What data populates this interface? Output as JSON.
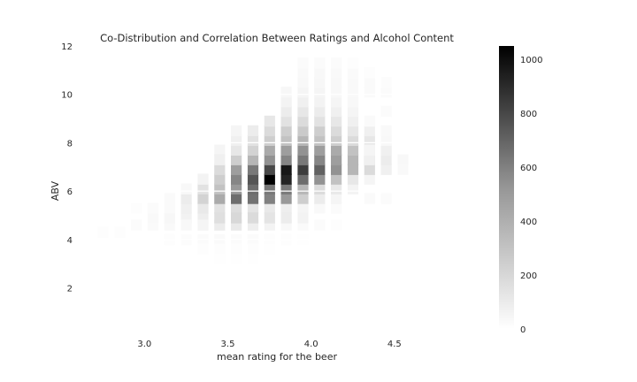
{
  "chart_data": {
    "type": "heatmap",
    "title": "Co-Distribution and Correlation Between Ratings and Alcohol Content",
    "xlabel": "mean rating for the beer",
    "ylabel": "ABV",
    "xlim": [
      2.6,
      5.0
    ],
    "ylim": [
      0.3,
      12.0
    ],
    "xticks": [
      3.0,
      3.5,
      4.0,
      4.5
    ],
    "xtick_labels": [
      "3.0",
      "3.5",
      "4.0",
      "4.5"
    ],
    "yticks": [
      2,
      4,
      6,
      8,
      10,
      12
    ],
    "ytick_labels": [
      "2",
      "4",
      "6",
      "8",
      "10",
      "12"
    ],
    "colorbar": {
      "ticks": [
        0,
        200,
        400,
        600,
        800,
        1000
      ],
      "tick_labels": [
        "0",
        "200",
        "400",
        "600",
        "800",
        "1000"
      ],
      "min": 0,
      "max": 1050,
      "colormap": "Greys"
    },
    "grid": true,
    "bin_width_x": 0.0625,
    "bin_height_y": 0.44,
    "cells": [
      [
        2.75,
        4.3,
        8
      ],
      [
        2.85,
        4.3,
        10
      ],
      [
        2.95,
        4.6,
        15
      ],
      [
        3.05,
        4.6,
        20
      ],
      [
        3.15,
        4.6,
        25
      ],
      [
        3.05,
        4.9,
        25
      ],
      [
        3.15,
        4.9,
        35
      ],
      [
        3.25,
        4.9,
        55
      ],
      [
        3.35,
        4.9,
        70
      ],
      [
        3.25,
        5.3,
        60
      ],
      [
        3.35,
        5.3,
        90
      ],
      [
        3.45,
        5.3,
        120
      ],
      [
        3.55,
        5.3,
        140
      ],
      [
        3.65,
        5.3,
        110
      ],
      [
        3.75,
        5.3,
        90
      ],
      [
        3.85,
        5.3,
        70
      ],
      [
        3.95,
        5.3,
        40
      ],
      [
        4.05,
        5.3,
        25
      ],
      [
        4.15,
        5.3,
        15
      ],
      [
        3.35,
        5.7,
        180
      ],
      [
        3.45,
        5.7,
        350
      ],
      [
        3.55,
        5.7,
        600
      ],
      [
        3.65,
        5.7,
        580
      ],
      [
        3.75,
        5.7,
        520
      ],
      [
        3.85,
        5.7,
        420
      ],
      [
        3.95,
        5.7,
        200
      ],
      [
        4.05,
        5.7,
        80
      ],
      [
        4.15,
        5.7,
        40
      ],
      [
        3.25,
        5.7,
        80
      ],
      [
        3.35,
        6.1,
        120
      ],
      [
        3.45,
        6.1,
        250
      ],
      [
        3.55,
        6.1,
        420
      ],
      [
        3.65,
        6.1,
        600
      ],
      [
        3.75,
        6.1,
        560
      ],
      [
        3.85,
        6.1,
        550
      ],
      [
        3.95,
        6.1,
        300
      ],
      [
        4.05,
        6.1,
        150
      ],
      [
        4.15,
        6.1,
        90
      ],
      [
        4.25,
        6.1,
        50
      ],
      [
        3.45,
        6.5,
        200
      ],
      [
        3.55,
        6.5,
        500
      ],
      [
        3.65,
        6.5,
        700
      ],
      [
        3.75,
        6.5,
        1050
      ],
      [
        3.85,
        6.5,
        900
      ],
      [
        3.95,
        6.5,
        600
      ],
      [
        4.05,
        6.5,
        450
      ],
      [
        4.15,
        6.5,
        250
      ],
      [
        4.25,
        6.5,
        100
      ],
      [
        4.35,
        6.5,
        40
      ],
      [
        3.45,
        6.9,
        150
      ],
      [
        3.55,
        6.9,
        400
      ],
      [
        3.65,
        6.9,
        550
      ],
      [
        3.75,
        6.9,
        750
      ],
      [
        3.85,
        6.9,
        950
      ],
      [
        3.95,
        6.9,
        800
      ],
      [
        4.05,
        6.9,
        650
      ],
      [
        4.15,
        6.9,
        450
      ],
      [
        4.25,
        6.9,
        300
      ],
      [
        4.35,
        6.9,
        150
      ],
      [
        4.45,
        6.9,
        60
      ],
      [
        3.55,
        7.3,
        200
      ],
      [
        3.65,
        7.3,
        300
      ],
      [
        3.75,
        7.3,
        450
      ],
      [
        3.85,
        7.3,
        500
      ],
      [
        3.95,
        7.3,
        550
      ],
      [
        4.05,
        7.3,
        500
      ],
      [
        4.15,
        7.3,
        400
      ],
      [
        4.25,
        7.3,
        300
      ],
      [
        4.35,
        7.3,
        200
      ],
      [
        4.45,
        7.3,
        80
      ],
      [
        3.55,
        7.7,
        100
      ],
      [
        3.65,
        7.7,
        180
      ],
      [
        3.75,
        7.7,
        350
      ],
      [
        3.85,
        7.7,
        400
      ],
      [
        3.95,
        7.7,
        450
      ],
      [
        4.05,
        7.7,
        400
      ],
      [
        4.15,
        7.7,
        350
      ],
      [
        4.25,
        7.7,
        250
      ],
      [
        4.35,
        7.7,
        150
      ],
      [
        4.45,
        7.7,
        60
      ],
      [
        3.65,
        8.1,
        120
      ],
      [
        3.75,
        8.1,
        200
      ],
      [
        3.85,
        8.1,
        250
      ],
      [
        3.95,
        8.1,
        300
      ],
      [
        4.05,
        8.1,
        250
      ],
      [
        4.15,
        8.1,
        200
      ],
      [
        4.25,
        8.1,
        150
      ],
      [
        4.35,
        8.1,
        100
      ],
      [
        3.65,
        8.5,
        80
      ],
      [
        3.75,
        8.5,
        150
      ],
      [
        3.85,
        8.5,
        200
      ],
      [
        3.95,
        8.5,
        220
      ],
      [
        4.05,
        8.5,
        200
      ],
      [
        4.15,
        8.5,
        150
      ],
      [
        4.25,
        8.5,
        100
      ],
      [
        4.35,
        8.5,
        60
      ],
      [
        3.75,
        8.9,
        100
      ],
      [
        3.85,
        8.9,
        120
      ],
      [
        3.95,
        8.9,
        150
      ],
      [
        4.05,
        8.9,
        120
      ],
      [
        4.15,
        8.9,
        100
      ],
      [
        4.25,
        8.9,
        60
      ],
      [
        3.85,
        9.3,
        80
      ],
      [
        3.95,
        9.3,
        100
      ],
      [
        4.05,
        9.3,
        80
      ],
      [
        4.15,
        9.3,
        60
      ],
      [
        4.25,
        9.3,
        40
      ],
      [
        3.85,
        9.7,
        50
      ],
      [
        3.95,
        9.7,
        60
      ],
      [
        4.05,
        9.7,
        50
      ],
      [
        4.15,
        9.7,
        40
      ],
      [
        4.25,
        9.7,
        30
      ],
      [
        3.85,
        10.1,
        35
      ],
      [
        3.95,
        10.1,
        40
      ],
      [
        4.05,
        10.1,
        40
      ],
      [
        4.15,
        10.1,
        30
      ],
      [
        4.25,
        10.1,
        25
      ],
      [
        3.95,
        10.5,
        30
      ],
      [
        4.05,
        10.5,
        35
      ],
      [
        4.15,
        10.5,
        30
      ],
      [
        4.25,
        10.5,
        25
      ],
      [
        4.35,
        10.5,
        20
      ],
      [
        3.95,
        10.9,
        25
      ],
      [
        4.05,
        10.9,
        30
      ],
      [
        4.15,
        10.9,
        25
      ],
      [
        4.25,
        10.9,
        20
      ],
      [
        3.95,
        11.3,
        15
      ],
      [
        4.05,
        11.3,
        15
      ],
      [
        4.15,
        11.3,
        15
      ],
      [
        4.25,
        11.3,
        10
      ],
      [
        3.15,
        4.0,
        10
      ],
      [
        3.25,
        4.0,
        12
      ],
      [
        3.35,
        4.0,
        15
      ],
      [
        3.45,
        4.0,
        20
      ],
      [
        3.55,
        4.0,
        18
      ],
      [
        3.65,
        4.0,
        15
      ],
      [
        3.75,
        4.0,
        10
      ],
      [
        3.85,
        4.0,
        8
      ],
      [
        3.95,
        4.0,
        6
      ],
      [
        3.35,
        3.6,
        8
      ],
      [
        3.45,
        3.6,
        10
      ],
      [
        3.55,
        3.6,
        10
      ],
      [
        3.65,
        3.6,
        8
      ],
      [
        3.75,
        3.6,
        6
      ],
      [
        3.45,
        3.2,
        6
      ],
      [
        3.55,
        3.2,
        6
      ],
      [
        3.65,
        3.2,
        5
      ],
      [
        4.35,
        5.7,
        20
      ],
      [
        4.45,
        5.7,
        15
      ],
      [
        4.35,
        7.3,
        60
      ],
      [
        4.55,
        7.3,
        30
      ],
      [
        4.55,
        6.9,
        25
      ],
      [
        4.35,
        7.7,
        40
      ],
      [
        4.45,
        8.1,
        30
      ],
      [
        4.45,
        8.5,
        25
      ],
      [
        4.35,
        8.9,
        20
      ],
      [
        4.45,
        9.3,
        15
      ],
      [
        3.55,
        8.1,
        60
      ],
      [
        3.55,
        8.5,
        40
      ],
      [
        3.45,
        7.7,
        40
      ],
      [
        3.45,
        7.3,
        60
      ],
      [
        3.35,
        6.5,
        50
      ],
      [
        3.25,
        6.1,
        30
      ],
      [
        3.15,
        5.7,
        20
      ],
      [
        2.95,
        5.3,
        10
      ],
      [
        3.05,
        5.3,
        15
      ],
      [
        3.15,
        5.3,
        20
      ],
      [
        4.45,
        10.1,
        15
      ],
      [
        4.35,
        10.1,
        20
      ],
      [
        4.45,
        10.5,
        12
      ],
      [
        4.35,
        10.9,
        10
      ],
      [
        4.05,
        4.6,
        15
      ],
      [
        4.15,
        4.6,
        10
      ],
      [
        3.85,
        4.6,
        30
      ],
      [
        3.95,
        4.6,
        20
      ],
      [
        3.75,
        4.6,
        50
      ],
      [
        3.65,
        4.6,
        70
      ],
      [
        3.55,
        4.6,
        90
      ],
      [
        3.45,
        4.6,
        80
      ],
      [
        3.35,
        4.6,
        40
      ],
      [
        3.25,
        4.6,
        30
      ],
      [
        3.45,
        4.9,
        130
      ],
      [
        3.55,
        4.9,
        160
      ],
      [
        3.65,
        4.9,
        150
      ],
      [
        3.75,
        4.9,
        110
      ],
      [
        3.85,
        4.9,
        80
      ],
      [
        3.95,
        4.9,
        50
      ]
    ]
  }
}
